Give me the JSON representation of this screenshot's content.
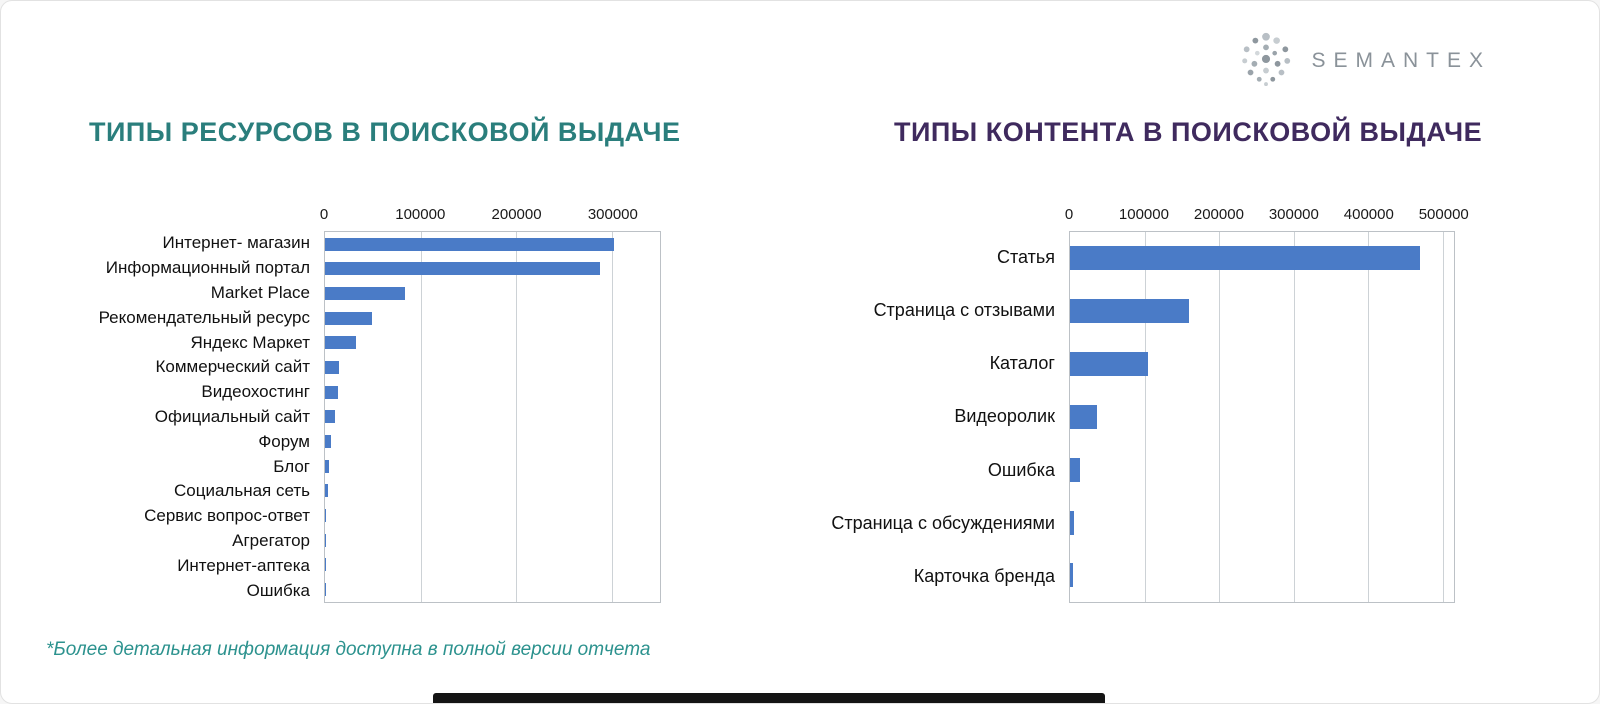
{
  "logo": {
    "brand": "SEMANTEX"
  },
  "footnote": "*Более детальная информация доступна в полной версии отчета",
  "colors": {
    "bar_blue": "#4a7bc7",
    "title_teal": "#2a7e7c",
    "title_purple": "#3f2a5e",
    "footnote_teal": "#2c928e"
  },
  "chart_data": [
    {
      "type": "bar",
      "orientation": "horizontal",
      "title": "ТИПЫ РЕСУРСОВ В ПОИСКОВОЙ ВЫДАЧЕ",
      "categories": [
        "Интернет- магазин",
        "Информационный портал",
        "Market Place",
        "Рекомендательный ресурс",
        "Яндекс Маркет",
        "Коммерческий сайт",
        "Видеохостинг",
        "Официальный сайт",
        "Форум",
        "Блог",
        "Социальная сеть",
        "Сервис вопрос-ответ",
        "Агрегатор",
        "Интернет-аптека",
        "Ошибка"
      ],
      "values": [
        302000,
        287000,
        84000,
        49000,
        32000,
        15000,
        14000,
        10000,
        6000,
        4000,
        3000,
        1500,
        1000,
        700,
        400
      ],
      "xlabel": "",
      "ylabel": "",
      "xlim": [
        0,
        350000
      ],
      "xticks": [
        0,
        100000,
        200000,
        300000
      ],
      "axis_position": "top",
      "grid": true,
      "legend": false,
      "bar_color": "#4a7bc7"
    },
    {
      "type": "bar",
      "orientation": "horizontal",
      "title": "ТИПЫ КОНТЕНТА В ПОИСКОВОЙ ВЫДАЧЕ",
      "categories": [
        "Статья",
        "Страница с отзывами",
        "Каталог",
        "Видеоролик",
        "Ошибка",
        "Страница с обсуждениями",
        "Карточка бренда"
      ],
      "values": [
        470000,
        160000,
        105000,
        36000,
        13000,
        5000,
        4000
      ],
      "xlabel": "",
      "ylabel": "",
      "xlim": [
        0,
        515000
      ],
      "xticks": [
        0,
        100000,
        200000,
        300000,
        400000,
        500000
      ],
      "axis_position": "top",
      "grid": true,
      "legend": false,
      "bar_color": "#4a7bc7"
    }
  ]
}
